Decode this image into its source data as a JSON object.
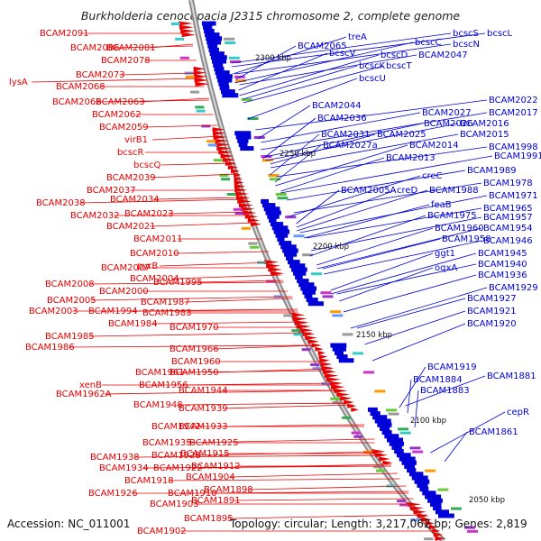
{
  "title": "Burkholderia cenocepacia J2315 chromosome 2, complete genome",
  "footer": {
    "accession": "Accession: NC_011001",
    "summary": "Topology: circular; Length: 3,217,062 bp; Genes: 2,819"
  },
  "ticks": [
    "2300 kbp",
    "2250 kbp",
    "2200 kbp",
    "2150 kbp",
    "2100 kbp",
    "2050 kbp"
  ],
  "colors": {
    "forward": "#e60000",
    "reverse": "#0000d9",
    "backbone": "#8c8c8c",
    "text": "#111111"
  },
  "left_labels": [
    "BCAM2091",
    "BCAM2086",
    "BCAM2081",
    "BCAM2078",
    "BCAM2073",
    "lysA",
    "BCAM2068",
    "BCAM2066",
    "BCAM2063",
    "BCAM2062",
    "BCAM2059",
    "virB1",
    "bcscR",
    "bcscQ",
    "BCAM2039",
    "BCAM2037",
    "BCAM2034",
    "BCAM2038",
    "BCAM2032",
    "BCAM2023",
    "BCAM2021",
    "BCAM2011",
    "BCAM2010",
    "pyrB",
    "BCAM2007",
    "BCAM2008",
    "BCAM2004",
    "BCAM2000",
    "BCAM1995",
    "BCAM2005",
    "BCAM2003",
    "BCAM1994",
    "BCAM1987",
    "BCAM1983",
    "BCAM1984",
    "BCAM1985",
    "BCAM1970",
    "BCAM1986",
    "BCAM1966",
    "BCAM1960",
    "BCAM1961",
    "BCAM1950",
    "xenB",
    "BCAM1956",
    "BCAM1962A",
    "BCAM1944",
    "BCAM1948",
    "BCAM1939",
    "BCAM1942",
    "BCAM1933",
    "BCAM1935",
    "BCAM1925",
    "BCAM1938",
    "BCAM1928",
    "BCAM1915",
    "BCAM1934",
    "BCAM1922",
    "BCAM1912",
    "BCAM1918",
    "BCAM1904",
    "BCAM1926",
    "BCAM1910",
    "BCAM1898",
    "BCAM1903",
    "BCAM1891",
    "BCAM1895",
    "BCAM1902"
  ],
  "right_labels": [
    "bcscS",
    "bcscL",
    "treA",
    "bcscC",
    "bcscN",
    "BCAM2065",
    "bcscV",
    "bcscD",
    "BCAM2047",
    "bcscK",
    "bcscT",
    "bcscU",
    "BCAM2022",
    "BCAM2044",
    "BCAM2017",
    "BCAM2036",
    "BCAM2027",
    "BCAM2026",
    "BCAM2016",
    "BCAM2031",
    "BCAM2025",
    "BCAM2015",
    "BCAM2027a",
    "BCAM2014",
    "BCAM1998",
    "BCAM2013",
    "BCAM1991",
    "creC",
    "BCAM1989",
    "BCAM2005A",
    "creD",
    "BCAM1988",
    "BCAM1978",
    "feaB",
    "BCAM1971",
    "BCAM1975",
    "BCAM1965",
    "BCAM1957",
    "BCAM1960",
    "BCAM1954",
    "BCAM1958",
    "BCAM1946",
    "ggt1",
    "BCAM1945",
    "BCAM1940",
    "oqxA",
    "BCAM1936",
    "BCAM1929",
    "BCAM1927",
    "BCAM1921",
    "BCAM1920",
    "BCAM1919",
    "BCAM1881",
    "BCAM1884",
    "BCAM1883",
    "cepR",
    "BCAM1861"
  ]
}
